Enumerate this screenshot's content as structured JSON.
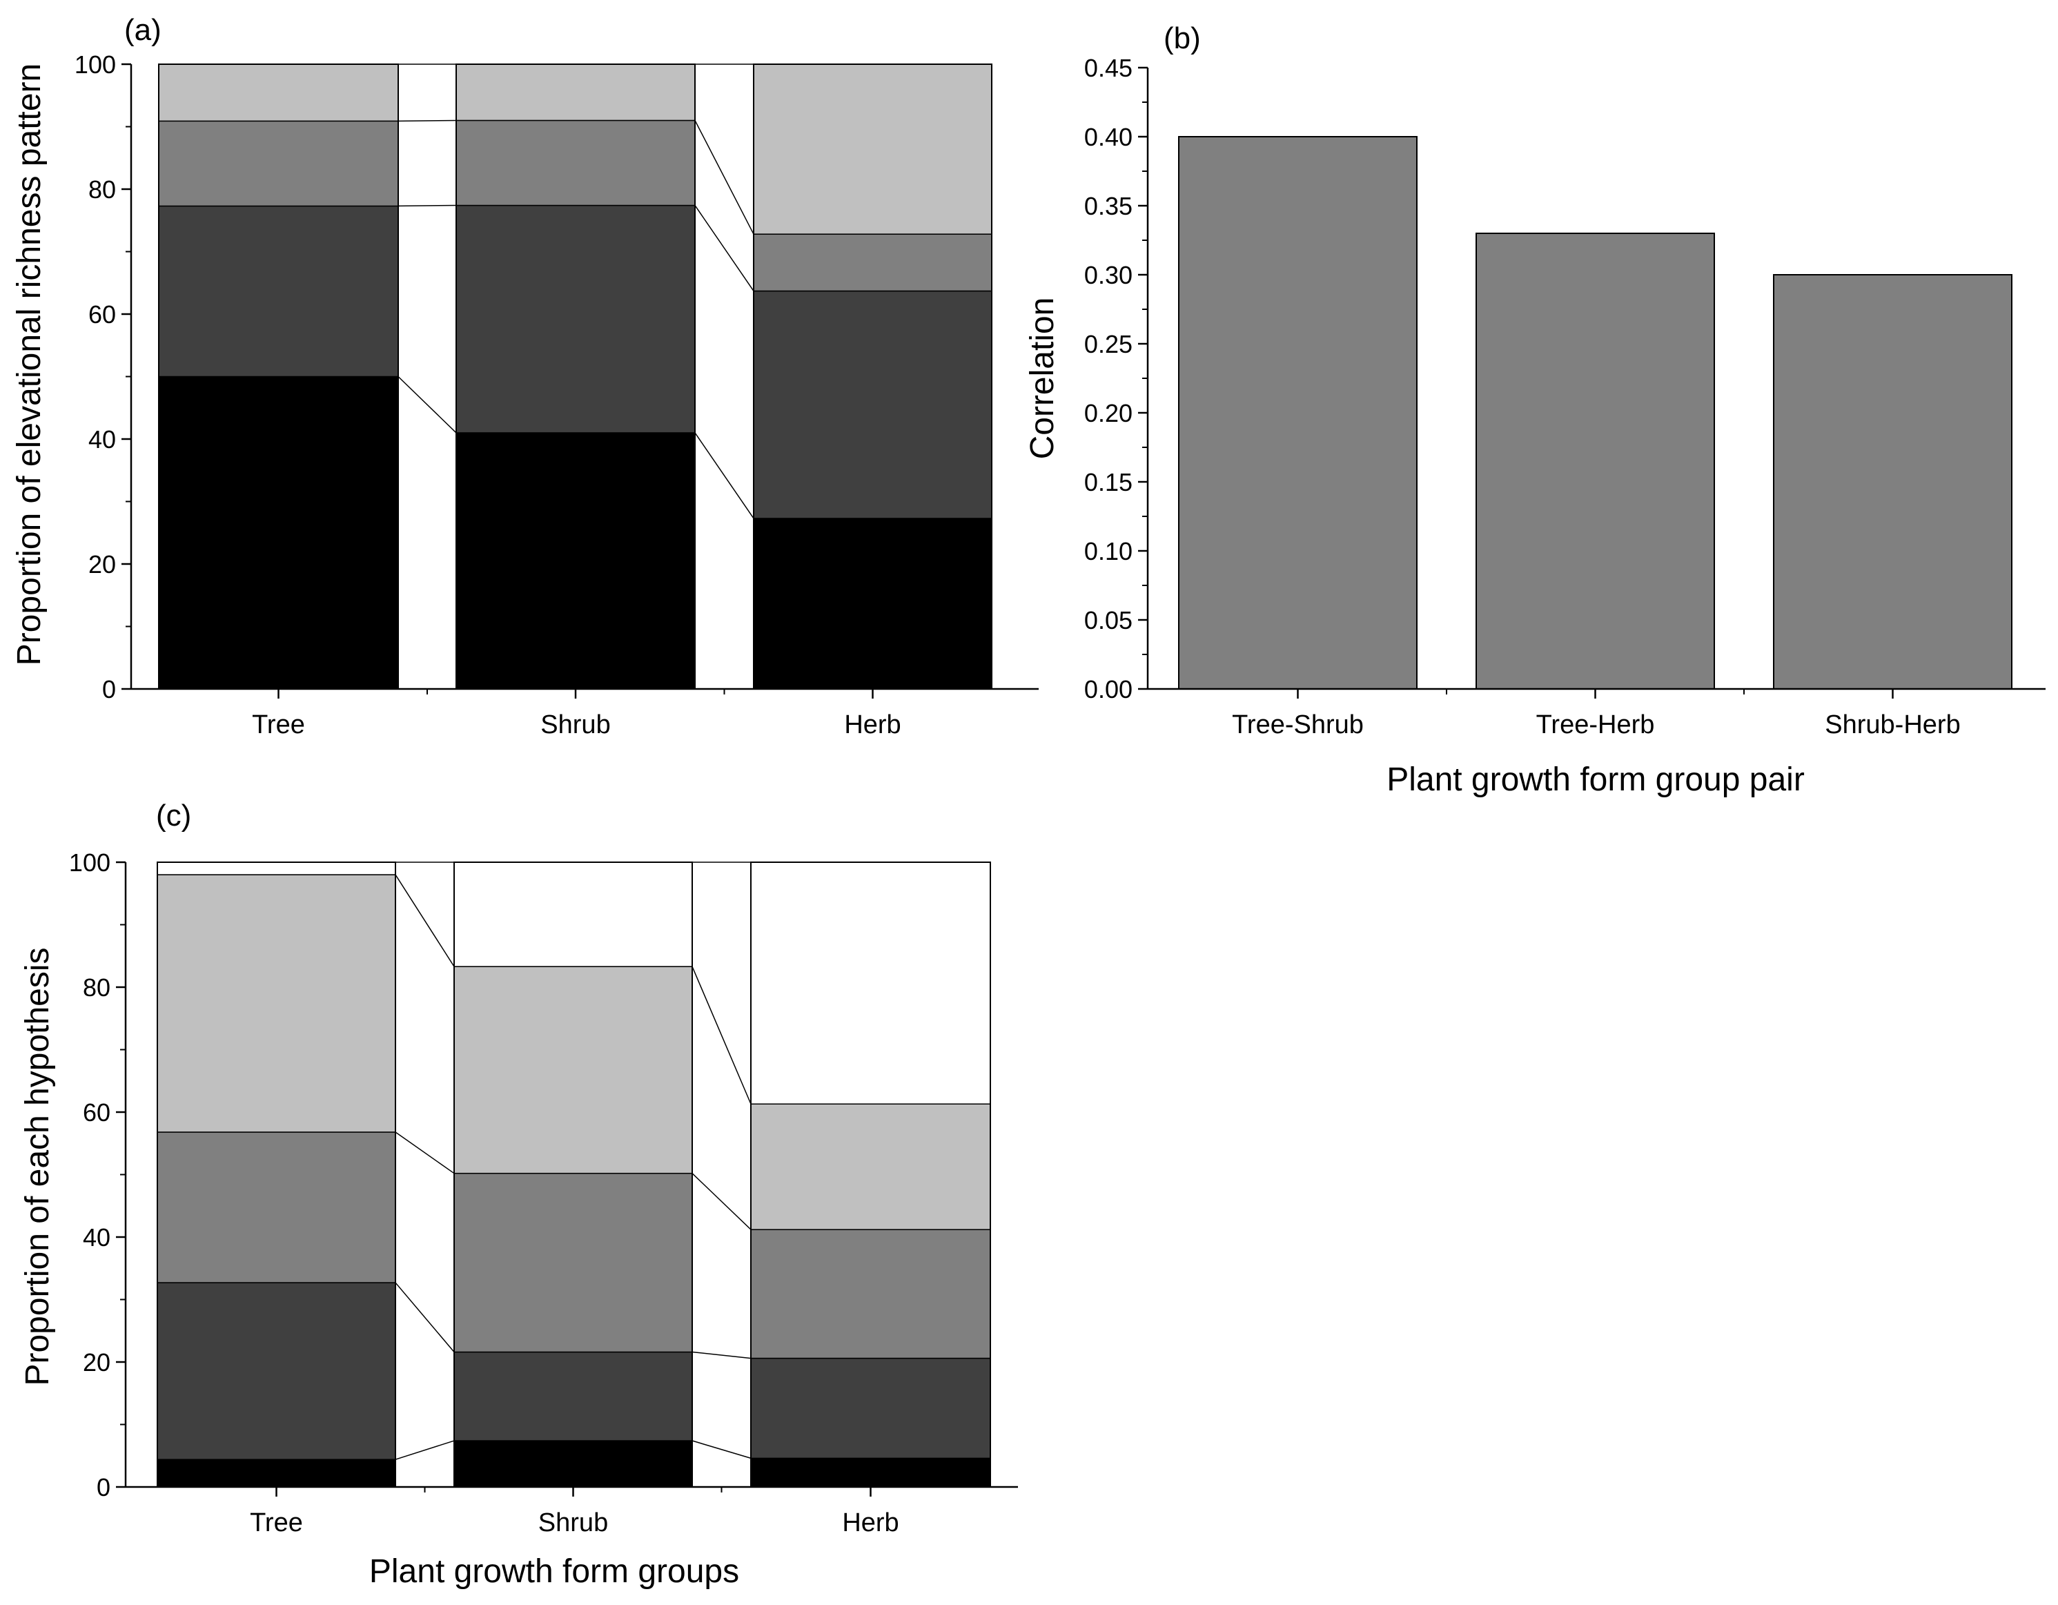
{
  "chart_data": [
    {
      "panel": "(a)",
      "type": "bar",
      "stacked": true,
      "categories": [
        "Tree",
        "Shrub",
        "Herb"
      ],
      "series": [
        {
          "name": "segment-1",
          "color": "#000000",
          "values": [
            50.0,
            41.0,
            27.3
          ]
        },
        {
          "name": "segment-2",
          "color": "#404040",
          "values": [
            27.3,
            36.4,
            36.4
          ]
        },
        {
          "name": "segment-3",
          "color": "#808080",
          "values": [
            13.6,
            13.6,
            9.1
          ]
        },
        {
          "name": "segment-4",
          "color": "#c0c0c0",
          "values": [
            9.1,
            9.0,
            27.2
          ]
        }
      ],
      "xlabel": "",
      "ylabel": "Proportion of elevational richness pattern",
      "ylim": [
        0,
        100
      ],
      "yticks": [
        "0",
        "20",
        "40",
        "60",
        "80",
        "100"
      ]
    },
    {
      "panel": "(b)",
      "type": "bar",
      "categories": [
        "Tree-Shrub",
        "Tree-Herb",
        "Shrub-Herb"
      ],
      "values": [
        0.4,
        0.33,
        0.3
      ],
      "color": "#808080",
      "xlabel": "Plant growth form group pair",
      "ylabel": "Correlation",
      "ylim": [
        0,
        0.45
      ],
      "yticks": [
        "0.00",
        "0.05",
        "0.10",
        "0.15",
        "0.20",
        "0.25",
        "0.30",
        "0.35",
        "0.40",
        "0.45"
      ]
    },
    {
      "panel": "(c)",
      "type": "bar",
      "stacked": true,
      "categories": [
        "Tree",
        "Shrub",
        "Herb"
      ],
      "series": [
        {
          "name": "segment-1",
          "color": "#000000",
          "values": [
            4.4,
            7.4,
            4.6
          ]
        },
        {
          "name": "segment-2",
          "color": "#404040",
          "values": [
            28.3,
            14.2,
            16.0
          ]
        },
        {
          "name": "segment-3",
          "color": "#808080",
          "values": [
            24.1,
            28.6,
            20.6
          ]
        },
        {
          "name": "segment-4",
          "color": "#c0c0c0",
          "values": [
            41.2,
            33.1,
            20.1
          ]
        },
        {
          "name": "segment-5",
          "color": "#ffffff",
          "values": [
            2.0,
            16.7,
            38.7
          ]
        }
      ],
      "xlabel": "Plant growth form groups",
      "ylabel": "Proportion of each hypothesis",
      "ylim": [
        0,
        100
      ],
      "yticks": [
        "0",
        "20",
        "40",
        "60",
        "80",
        "100"
      ]
    }
  ]
}
